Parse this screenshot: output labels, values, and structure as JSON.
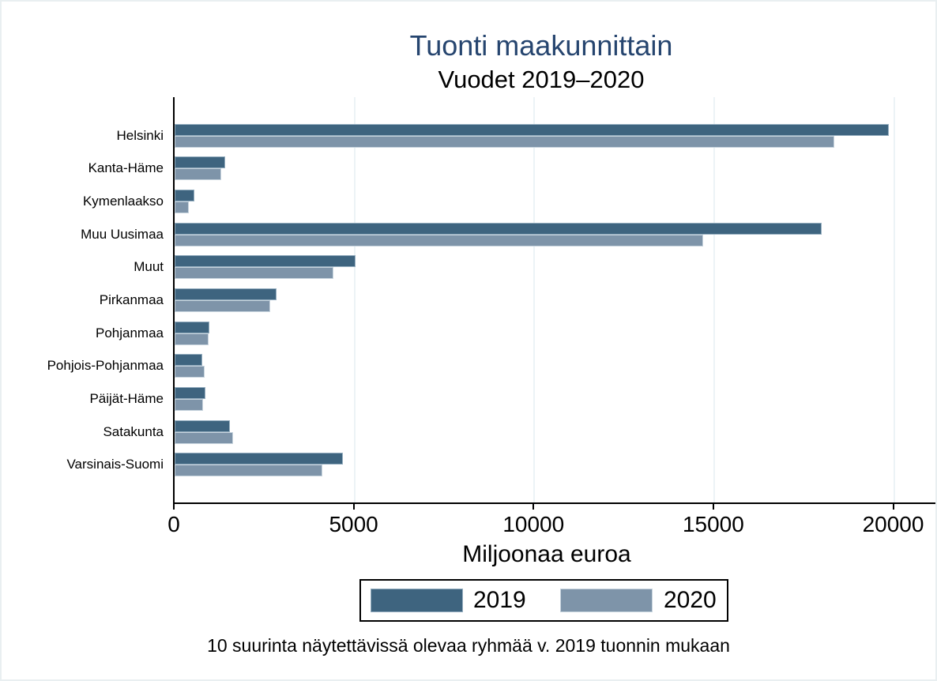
{
  "chart_data": {
    "type": "bar",
    "orientation": "horizontal",
    "title": "Tuonti maakunnittain",
    "subtitle": "Vuodet 2019–2020",
    "xlabel": "Miljoonaa euroa",
    "note": "10 suurinta näytettävissä olevaa ryhmää v. 2019 tuonnin mukaan",
    "categories": [
      "Helsinki",
      "Kanta-Häme",
      "Kymenlaakso",
      "Muu Uusimaa",
      "Muut",
      "Pirkanmaa",
      "Pohjanmaa",
      "Pohjois-Pohjanmaa",
      "Päijät-Häme",
      "Satakunta",
      "Varsinais-Suomi"
    ],
    "series": [
      {
        "name": "2019",
        "color": "#3e647f",
        "border_color": "#93acbe",
        "values": [
          19850,
          1400,
          550,
          18000,
          5020,
          2840,
          970,
          775,
          855,
          1545,
          4670
        ]
      },
      {
        "name": "2020",
        "color": "#7e94a9",
        "border_color": "#c6d3dd",
        "values": [
          18350,
          1300,
          400,
          14700,
          4410,
          2660,
          940,
          825,
          800,
          1615,
          4100
        ]
      }
    ],
    "x_ticks": [
      0,
      5000,
      10000,
      15000,
      20000
    ],
    "xlim": [
      0,
      21150
    ],
    "grid": true,
    "legend_position": "bottom-center",
    "colors": {
      "title": "#26456f",
      "subtitle": "#000000",
      "axis": "#000000",
      "gridline": "#ecf3f6",
      "text": "#000000"
    }
  }
}
